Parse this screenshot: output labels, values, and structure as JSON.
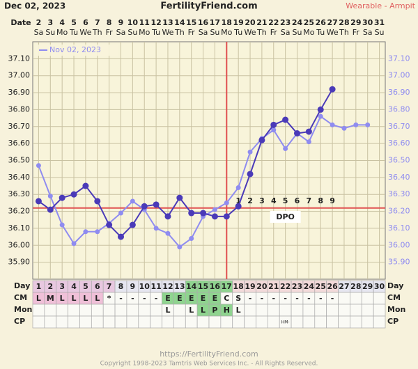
{
  "header": {
    "date": "Dec 02, 2023",
    "site": "FertilityFriend.com",
    "method": "Wearable - Armpit"
  },
  "footer": {
    "url": "https://FertilityFriend.com",
    "copyright": "Copyright 1998-2023 Tamtris Web Services Inc. - All Rights Reserved."
  },
  "chart_data": {
    "type": "line",
    "x": [
      1,
      2,
      3,
      4,
      5,
      6,
      7,
      8,
      9,
      10,
      11,
      12,
      13,
      14,
      15,
      16,
      17,
      18,
      19,
      20,
      21,
      22,
      23,
      24,
      25,
      26,
      27,
      28,
      29,
      30
    ],
    "xlim": [
      0.5,
      30.5
    ],
    "dates": [
      2,
      3,
      4,
      5,
      6,
      7,
      8,
      9,
      10,
      11,
      12,
      13,
      14,
      15,
      16,
      17,
      18,
      19,
      20,
      21,
      22,
      23,
      24,
      25,
      26,
      27,
      28,
      29,
      30,
      31
    ],
    "weekdays": [
      "Sa",
      "Su",
      "Mo",
      "Tu",
      "We",
      "Th",
      "Fr",
      "Sa",
      "Su",
      "Mo",
      "Tu",
      "We",
      "Th",
      "Fr",
      "Sa",
      "Su",
      "Mo",
      "Tu",
      "We",
      "Th",
      "Fr",
      "Sa",
      "Su",
      "Mo",
      "Tu",
      "We",
      "Th",
      "Fr",
      "Sa",
      "Su"
    ],
    "ylim": [
      35.8,
      37.2
    ],
    "yticks": [
      {
        "value": 35.9,
        "label": "35.90"
      },
      {
        "value": 36.0,
        "label": "36.00"
      },
      {
        "value": 36.1,
        "label": "36.10"
      },
      {
        "value": 36.2,
        "label": "36.20"
      },
      {
        "value": 36.3,
        "label": "36.30"
      },
      {
        "value": 36.4,
        "label": "36.40"
      },
      {
        "value": 36.5,
        "label": "36.50"
      },
      {
        "value": 36.6,
        "label": "36.60"
      },
      {
        "value": 36.7,
        "label": "36.70"
      },
      {
        "value": 36.8,
        "label": "36.80"
      },
      {
        "value": 36.9,
        "label": "36.90"
      },
      {
        "value": 37.0,
        "label": "37.00"
      },
      {
        "value": 37.1,
        "label": "37.10"
      }
    ],
    "grid": true,
    "coverline": 36.22,
    "ovulation_day": 17,
    "dpo": [
      1,
      2,
      3,
      4,
      5,
      6,
      7,
      8,
      9
    ],
    "dpo_label": "DPO",
    "series": [
      {
        "color": "#4a3ab8",
        "values": [
          36.26,
          36.21,
          36.28,
          36.3,
          36.35,
          36.26,
          36.12,
          36.05,
          36.12,
          36.23,
          36.24,
          36.17,
          36.28,
          36.19,
          36.19,
          36.17,
          36.17,
          36.23,
          36.42,
          36.62,
          36.71,
          36.74,
          36.66,
          36.67,
          36.8,
          36.92,
          null,
          null,
          null,
          null
        ]
      },
      {
        "name": "Nov 02, 2023",
        "color": "#8f8cf0",
        "values": [
          36.47,
          36.29,
          36.12,
          36.01,
          36.08,
          36.08,
          36.13,
          36.19,
          36.26,
          36.21,
          36.1,
          36.07,
          35.99,
          36.04,
          36.17,
          36.21,
          36.25,
          36.34,
          36.55,
          36.63,
          36.68,
          36.57,
          36.66,
          36.61,
          36.76,
          36.71,
          36.69,
          36.71,
          36.71,
          null
        ]
      }
    ]
  },
  "labels": {
    "date": "Date",
    "day": "Day",
    "cm": "CM",
    "mon": "Mon",
    "cp": "CP"
  },
  "table": {
    "cm": [
      "L",
      "M",
      "L",
      "L",
      "L",
      "L",
      "*",
      "-",
      "-",
      "-",
      "-",
      "E",
      "E",
      "E",
      "E",
      "E",
      "C",
      "S",
      "-",
      "-",
      "-",
      "-",
      "-",
      "-",
      "-",
      "-",
      null,
      null,
      null,
      null
    ],
    "mon": [
      null,
      null,
      null,
      null,
      null,
      null,
      null,
      null,
      null,
      null,
      null,
      "L",
      null,
      "L",
      "L",
      "P",
      "H",
      "L",
      null,
      null,
      null,
      null,
      null,
      null,
      null,
      null,
      null,
      null,
      null,
      null
    ],
    "cp": [
      null,
      null,
      null,
      null,
      null,
      null,
      null,
      null,
      null,
      null,
      null,
      null,
      null,
      null,
      null,
      null,
      null,
      null,
      null,
      null,
      null,
      "HM-",
      null,
      null,
      null,
      null,
      null,
      null,
      null,
      null
    ]
  }
}
